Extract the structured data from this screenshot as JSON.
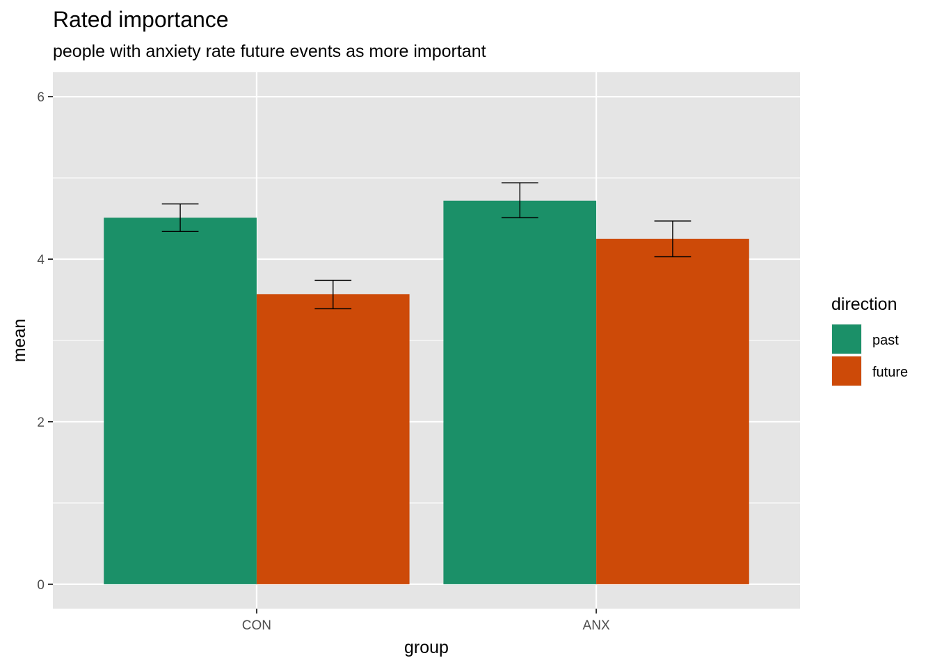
{
  "chart_data": {
    "type": "bar",
    "title": "Rated importance",
    "subtitle": "people with anxiety rate future events as more important",
    "xlabel": "group",
    "ylabel": "mean",
    "categories": [
      "CON",
      "ANX"
    ],
    "series": [
      {
        "name": "past",
        "color": "#1b9068",
        "values": [
          4.51,
          4.72
        ],
        "error_low": [
          4.34,
          4.51
        ],
        "error_high": [
          4.68,
          4.94
        ]
      },
      {
        "name": "future",
        "color": "#cd4a08",
        "values": [
          3.57,
          4.25
        ],
        "error_low": [
          3.39,
          4.03
        ],
        "error_high": [
          3.74,
          4.47
        ]
      }
    ],
    "ylim": [
      -0.3,
      6.3
    ],
    "y_ticks": [
      "0",
      "2",
      "4",
      "6"
    ],
    "legend": {
      "title": "direction",
      "placement": "right"
    },
    "grid": true,
    "panel_color": "#e5e5e5"
  }
}
